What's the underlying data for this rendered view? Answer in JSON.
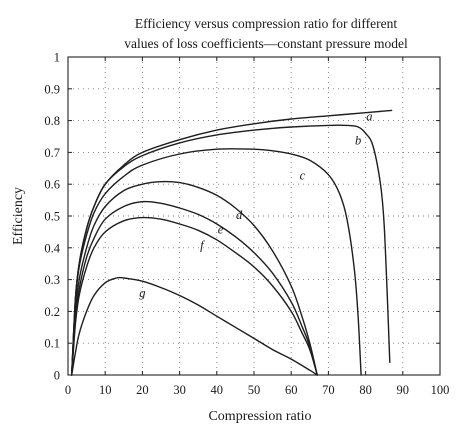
{
  "chart_data": {
    "type": "line",
    "title": [
      "Efficiency versus compression ratio for different",
      "values of loss coefficients—constant pressure model"
    ],
    "xlabel": "Compression ratio",
    "ylabel": "Efficiency",
    "xlim": [
      0,
      100
    ],
    "ylim": [
      0,
      1
    ],
    "xticks": [
      0,
      10,
      20,
      30,
      40,
      50,
      60,
      70,
      80,
      90,
      100
    ],
    "yticks": [
      0,
      0.1,
      0.2,
      0.3,
      0.4,
      0.5,
      0.6,
      0.7,
      0.8,
      0.9,
      1
    ],
    "grid": true,
    "series": [
      {
        "name": "a",
        "x": [
          1,
          2,
          3,
          5,
          7,
          10,
          15,
          20,
          30,
          40,
          50,
          60,
          70,
          80,
          87
        ],
        "y": [
          0,
          0.24,
          0.35,
          0.46,
          0.53,
          0.6,
          0.66,
          0.7,
          0.74,
          0.77,
          0.79,
          0.805,
          0.815,
          0.825,
          0.832
        ]
      },
      {
        "name": "b",
        "x": [
          1,
          2,
          3,
          5,
          7,
          10,
          15,
          20,
          30,
          40,
          50,
          60,
          70,
          75,
          78,
          80,
          82,
          84,
          85,
          86,
          86.5
        ],
        "y": [
          0,
          0.24,
          0.35,
          0.46,
          0.53,
          0.6,
          0.655,
          0.69,
          0.73,
          0.755,
          0.77,
          0.78,
          0.785,
          0.785,
          0.78,
          0.76,
          0.72,
          0.6,
          0.47,
          0.2,
          0.04
        ]
      },
      {
        "name": "c",
        "x": [
          1,
          2,
          3,
          5,
          7,
          10,
          15,
          20,
          30,
          40,
          50,
          55,
          60,
          65,
          70,
          73,
          75,
          77,
          78,
          78.8
        ],
        "y": [
          0,
          0.23,
          0.34,
          0.44,
          0.51,
          0.57,
          0.625,
          0.66,
          0.695,
          0.71,
          0.71,
          0.705,
          0.695,
          0.675,
          0.63,
          0.57,
          0.49,
          0.33,
          0.18,
          0.0
        ]
      },
      {
        "name": "d",
        "x": [
          1,
          2,
          3,
          5,
          7,
          10,
          15,
          20,
          25,
          30,
          35,
          40,
          45,
          50,
          55,
          60,
          63,
          65,
          67
        ],
        "y": [
          0,
          0.2,
          0.3,
          0.4,
          0.47,
          0.53,
          0.58,
          0.6,
          0.608,
          0.605,
          0.59,
          0.565,
          0.525,
          0.47,
          0.39,
          0.28,
          0.18,
          0.1,
          0.0
        ]
      },
      {
        "name": "e",
        "x": [
          1,
          2,
          3,
          5,
          7,
          10,
          15,
          20,
          25,
          30,
          35,
          40,
          45,
          50,
          55,
          60,
          63,
          65,
          67
        ],
        "y": [
          0,
          0.18,
          0.27,
          0.37,
          0.43,
          0.49,
          0.53,
          0.545,
          0.54,
          0.525,
          0.505,
          0.475,
          0.435,
          0.385,
          0.32,
          0.23,
          0.15,
          0.09,
          0.0
        ]
      },
      {
        "name": "f",
        "x": [
          1,
          2,
          3,
          5,
          7,
          10,
          15,
          20,
          25,
          30,
          35,
          40,
          45,
          50,
          55,
          60,
          63,
          65,
          67
        ],
        "y": [
          0,
          0.16,
          0.25,
          0.34,
          0.4,
          0.45,
          0.485,
          0.495,
          0.49,
          0.475,
          0.455,
          0.425,
          0.385,
          0.34,
          0.28,
          0.2,
          0.13,
          0.08,
          0.0
        ]
      },
      {
        "name": "g",
        "x": [
          1,
          2,
          3,
          5,
          7,
          10,
          13,
          15,
          20,
          25,
          30,
          35,
          40,
          45,
          50,
          55,
          60,
          65,
          67
        ],
        "y": [
          0,
          0.07,
          0.13,
          0.2,
          0.25,
          0.29,
          0.305,
          0.305,
          0.295,
          0.275,
          0.25,
          0.22,
          0.185,
          0.15,
          0.115,
          0.08,
          0.05,
          0.015,
          0.0
        ]
      }
    ],
    "curve_labels": [
      {
        "text": "a",
        "x": 81,
        "y": 0.8
      },
      {
        "text": "b",
        "x": 78,
        "y": 0.725
      },
      {
        "text": "c",
        "x": 63,
        "y": 0.615
      },
      {
        "text": "d",
        "x": 46,
        "y": 0.49
      },
      {
        "text": "e",
        "x": 41,
        "y": 0.445
      },
      {
        "text": "f",
        "x": 36,
        "y": 0.395
      },
      {
        "text": "g",
        "x": 20,
        "y": 0.245
      }
    ]
  }
}
